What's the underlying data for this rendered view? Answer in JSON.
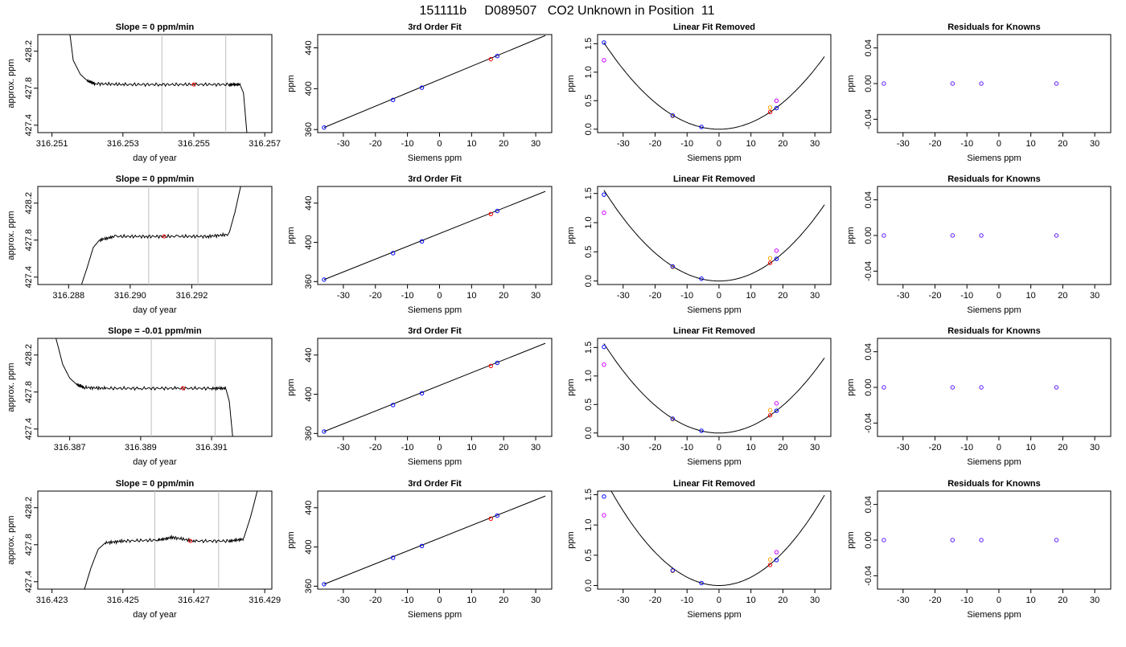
{
  "title": "151111b     D089507   CO2 Unknown in Position  11",
  "colors": {
    "known": "#0000ff",
    "unknown": "#ff0000",
    "magenta": "#cc00ff",
    "orange": "#ffa500",
    "line": "#000000",
    "vline": "#bebebe"
  },
  "chart_data": [
    {
      "type": "line",
      "row": 0,
      "col": 0,
      "title": "Slope =  0  ppm/min",
      "xlabel": "day of year",
      "ylabel": "approx. ppm",
      "xlim": [
        316.2506,
        316.2572
      ],
      "ylim": [
        427.32,
        428.38
      ],
      "xticks": [
        316.251,
        316.253,
        316.255,
        316.257
      ],
      "xtick_labels": [
        "316.251",
        "316.253",
        "316.255",
        "316.257"
      ],
      "yticks": [
        427.4,
        427.8,
        428.2
      ],
      "ytick_labels": [
        "427.4",
        "427.8",
        "428.2"
      ],
      "vlines": [
        316.2541,
        316.2559
      ],
      "x": [
        316.2515,
        316.2516,
        316.2518,
        316.252,
        316.2522,
        316.253,
        316.254,
        316.255,
        316.256,
        316.2563,
        316.2564,
        316.2565
      ],
      "y": [
        428.4,
        428.1,
        427.95,
        427.88,
        427.85,
        427.84,
        427.84,
        427.84,
        427.84,
        427.84,
        427.75,
        427.3
      ],
      "marker": {
        "x": 316.255,
        "y": 427.84
      }
    },
    {
      "type": "scatter",
      "row": 0,
      "col": 1,
      "title": "3rd Order Fit",
      "xlabel": "Siemens ppm",
      "ylabel": "ppm",
      "xlim": [
        -38,
        35
      ],
      "ylim": [
        357,
        453
      ],
      "xticks": [
        -30,
        -20,
        -10,
        0,
        10,
        20,
        30
      ],
      "xtick_labels": [
        "-30",
        "-20",
        "-10",
        "0",
        "10",
        "20",
        "30"
      ],
      "yticks": [
        360,
        400,
        440
      ],
      "ytick_labels": [
        "360",
        "400",
        "440"
      ],
      "line": {
        "x": [
          -36,
          33
        ],
        "y": [
          362,
          452
        ]
      },
      "knowns": {
        "x": [
          -36,
          -14.5,
          -5.5,
          18
        ],
        "y": [
          362,
          389,
          401,
          432
        ]
      },
      "unknowns": {
        "x": [
          16
        ],
        "y": [
          428.9
        ]
      }
    },
    {
      "type": "scatter",
      "row": 0,
      "col": 2,
      "title": "Linear Fit Removed",
      "xlabel": "Siemens ppm",
      "ylabel": "ppm",
      "xlim": [
        -38,
        35
      ],
      "ylim": [
        -0.06,
        1.66
      ],
      "xticks": [
        -30,
        -20,
        -10,
        0,
        10,
        20,
        30
      ],
      "xtick_labels": [
        "-30",
        "-20",
        "-10",
        "0",
        "10",
        "20",
        "30"
      ],
      "yticks": [
        0,
        0.5,
        1,
        1.5
      ],
      "ytick_labels": [
        "0.0",
        "0.5",
        "1.0",
        "1.5"
      ],
      "curve_coef": 0.00117,
      "knowns": {
        "x": [
          -36,
          -14.5,
          -5.5,
          18
        ],
        "y": [
          1.52,
          0.24,
          0.04,
          0.37
        ]
      },
      "magenta": {
        "x": [
          -36,
          18
        ],
        "y": [
          1.21,
          0.5
        ]
      },
      "orange": {
        "x": [
          -14.5,
          16
        ],
        "y": [
          0.23,
          0.38
        ]
      },
      "unknowns": {
        "x": [
          16
        ],
        "y": [
          0.3
        ]
      }
    },
    {
      "type": "scatter",
      "row": 0,
      "col": 3,
      "title": "Residuals for Knowns",
      "xlabel": "Siemens ppm",
      "ylabel": "ppm",
      "xlim": [
        -38,
        35
      ],
      "ylim": [
        -0.055,
        0.055
      ],
      "xticks": [
        -30,
        -20,
        -10,
        0,
        10,
        20,
        30
      ],
      "xtick_labels": [
        "-30",
        "-20",
        "-10",
        "0",
        "10",
        "20",
        "30"
      ],
      "yticks": [
        -0.04,
        0,
        0.04
      ],
      "ytick_labels": [
        "-0.04",
        "0.00",
        "0.04"
      ],
      "points": {
        "x": [
          -36,
          -14.5,
          -5.5,
          18
        ],
        "y": [
          0,
          0,
          0,
          0
        ]
      }
    },
    {
      "type": "line",
      "row": 1,
      "col": 0,
      "title": "Slope =  0  ppm/min",
      "xlabel": "day of year",
      "ylabel": "approx. ppm",
      "xlim": [
        316.287,
        316.2946
      ],
      "ylim": [
        427.32,
        428.38
      ],
      "xticks": [
        316.288,
        316.29,
        316.292
      ],
      "xtick_labels": [
        "316.288",
        "316.290",
        "316.292"
      ],
      "yticks": [
        427.4,
        427.8,
        428.2
      ],
      "ytick_labels": [
        "427.4",
        "427.8",
        "428.2"
      ],
      "vlines": [
        316.2906,
        316.2922
      ],
      "x": [
        316.2884,
        316.2886,
        316.2888,
        316.289,
        316.2895,
        316.2905,
        316.2915,
        316.2925,
        316.2932,
        316.2934,
        316.2936
      ],
      "y": [
        427.3,
        427.5,
        427.72,
        427.8,
        427.84,
        427.84,
        427.84,
        427.84,
        427.86,
        428.1,
        428.4
      ],
      "marker": {
        "x": 316.2911,
        "y": 427.84
      }
    },
    {
      "type": "scatter",
      "row": 1,
      "col": 1,
      "title": "3rd Order Fit",
      "xlabel": "Siemens ppm",
      "ylabel": "ppm",
      "xlim": [
        -38,
        35
      ],
      "ylim": [
        357,
        457
      ],
      "xticks": [
        -30,
        -20,
        -10,
        0,
        10,
        20,
        30
      ],
      "xtick_labels": [
        "-30",
        "-20",
        "-10",
        "0",
        "10",
        "20",
        "30"
      ],
      "yticks": [
        360,
        400,
        440
      ],
      "ytick_labels": [
        "360",
        "400",
        "440"
      ],
      "line": {
        "x": [
          -36,
          33
        ],
        "y": [
          362,
          452
        ]
      },
      "knowns": {
        "x": [
          -36,
          -14.5,
          -5.5,
          18
        ],
        "y": [
          362,
          389,
          401,
          432
        ]
      },
      "unknowns": {
        "x": [
          16
        ],
        "y": [
          428.9
        ]
      }
    },
    {
      "type": "scatter",
      "row": 1,
      "col": 2,
      "title": "Linear Fit Removed",
      "xlabel": "Siemens ppm",
      "ylabel": "ppm",
      "xlim": [
        -38,
        35
      ],
      "ylim": [
        -0.06,
        1.62
      ],
      "xticks": [
        -30,
        -20,
        -10,
        0,
        10,
        20,
        30
      ],
      "xtick_labels": [
        "-30",
        "-20",
        "-10",
        "0",
        "10",
        "20",
        "30"
      ],
      "yticks": [
        0,
        0.5,
        1,
        1.5
      ],
      "ytick_labels": [
        "0.0",
        "0.5",
        "1.0",
        "1.5"
      ],
      "curve_coef": 0.0012,
      "knowns": {
        "x": [
          -36,
          -14.5,
          -5.5,
          18
        ],
        "y": [
          1.48,
          0.25,
          0.04,
          0.38
        ]
      },
      "magenta": {
        "x": [
          -36,
          18
        ],
        "y": [
          1.17,
          0.52
        ]
      },
      "orange": {
        "x": [
          -14.5,
          16
        ],
        "y": [
          0.24,
          0.39
        ]
      },
      "unknowns": {
        "x": [
          16
        ],
        "y": [
          0.31
        ]
      }
    },
    {
      "type": "scatter",
      "row": 1,
      "col": 3,
      "title": "Residuals for Knowns",
      "xlabel": "Siemens ppm",
      "ylabel": "ppm",
      "xlim": [
        -38,
        35
      ],
      "ylim": [
        -0.055,
        0.055
      ],
      "xticks": [
        -30,
        -20,
        -10,
        0,
        10,
        20,
        30
      ],
      "xtick_labels": [
        "-30",
        "-20",
        "-10",
        "0",
        "10",
        "20",
        "30"
      ],
      "yticks": [
        -0.04,
        0,
        0.04
      ],
      "ytick_labels": [
        "-0.04",
        "0.00",
        "0.04"
      ],
      "points": {
        "x": [
          -36,
          -14.5,
          -5.5,
          18
        ],
        "y": [
          0,
          0,
          0,
          0
        ]
      }
    },
    {
      "type": "line",
      "row": 2,
      "col": 0,
      "title": "Slope =  -0.01  ppm/min",
      "xlabel": "day of year",
      "ylabel": "approx. ppm",
      "xlim": [
        316.3861,
        316.3927
      ],
      "ylim": [
        427.32,
        428.38
      ],
      "xticks": [
        316.387,
        316.389,
        316.391
      ],
      "xtick_labels": [
        "316.387",
        "316.389",
        "316.391"
      ],
      "yticks": [
        427.4,
        427.8,
        428.2
      ],
      "ytick_labels": [
        "427.4",
        "427.8",
        "428.2"
      ],
      "vlines": [
        316.3893,
        316.3911
      ],
      "x": [
        316.3866,
        316.3868,
        316.387,
        316.3872,
        316.3874,
        316.388,
        316.389,
        316.39,
        316.391,
        316.3914,
        316.3915,
        316.3916
      ],
      "y": [
        428.4,
        428.1,
        427.95,
        427.88,
        427.85,
        427.84,
        427.84,
        427.84,
        427.84,
        427.84,
        427.7,
        427.3
      ],
      "marker": {
        "x": 316.3902,
        "y": 427.84
      }
    },
    {
      "type": "scatter",
      "row": 2,
      "col": 1,
      "title": "3rd Order Fit",
      "xlabel": "Siemens ppm",
      "ylabel": "ppm",
      "xlim": [
        -38,
        35
      ],
      "ylim": [
        357,
        457
      ],
      "xticks": [
        -30,
        -20,
        -10,
        0,
        10,
        20,
        30
      ],
      "xtick_labels": [
        "-30",
        "-20",
        "-10",
        "0",
        "10",
        "20",
        "30"
      ],
      "yticks": [
        360,
        400,
        440
      ],
      "ytick_labels": [
        "360",
        "400",
        "440"
      ],
      "line": {
        "x": [
          -36,
          33
        ],
        "y": [
          362,
          452
        ]
      },
      "knowns": {
        "x": [
          -36,
          -14.5,
          -5.5,
          18
        ],
        "y": [
          362,
          389,
          401,
          432
        ]
      },
      "unknowns": {
        "x": [
          16
        ],
        "y": [
          428.9
        ]
      }
    },
    {
      "type": "scatter",
      "row": 2,
      "col": 2,
      "title": "Linear Fit Removed",
      "xlabel": "Siemens ppm",
      "ylabel": "ppm",
      "xlim": [
        -38,
        35
      ],
      "ylim": [
        -0.06,
        1.66
      ],
      "xticks": [
        -30,
        -20,
        -10,
        0,
        10,
        20,
        30
      ],
      "xtick_labels": [
        "-30",
        "-20",
        "-10",
        "0",
        "10",
        "20",
        "30"
      ],
      "yticks": [
        0,
        0.5,
        1,
        1.5
      ],
      "ytick_labels": [
        "0.0",
        "0.5",
        "1.0",
        "1.5"
      ],
      "curve_coef": 0.00121,
      "knowns": {
        "x": [
          -36,
          -14.5,
          -5.5,
          18
        ],
        "y": [
          1.51,
          0.25,
          0.04,
          0.39
        ]
      },
      "magenta": {
        "x": [
          -36,
          18
        ],
        "y": [
          1.2,
          0.52
        ]
      },
      "orange": {
        "x": [
          -14.5,
          16
        ],
        "y": [
          0.24,
          0.4
        ]
      },
      "unknowns": {
        "x": [
          16
        ],
        "y": [
          0.31
        ]
      }
    },
    {
      "type": "scatter",
      "row": 2,
      "col": 3,
      "title": "Residuals for Knowns",
      "xlabel": "Siemens ppm",
      "ylabel": "ppm",
      "xlim": [
        -38,
        35
      ],
      "ylim": [
        -0.055,
        0.055
      ],
      "xticks": [
        -30,
        -20,
        -10,
        0,
        10,
        20,
        30
      ],
      "xtick_labels": [
        "-30",
        "-20",
        "-10",
        "0",
        "10",
        "20",
        "30"
      ],
      "yticks": [
        -0.04,
        0,
        0.04
      ],
      "ytick_labels": [
        "-0.04",
        "0.00",
        "0.04"
      ],
      "points": {
        "x": [
          -36,
          -14.5,
          -5.5,
          18
        ],
        "y": [
          0,
          0,
          0,
          0
        ]
      }
    },
    {
      "type": "line",
      "row": 3,
      "col": 0,
      "title": "Slope =  0  ppm/min",
      "xlabel": "day of year",
      "ylabel": "approx. ppm",
      "xlim": [
        316.4226,
        316.4292
      ],
      "ylim": [
        427.32,
        428.38
      ],
      "xticks": [
        316.423,
        316.425,
        316.427,
        316.429
      ],
      "xtick_labels": [
        "316.423",
        "316.425",
        "316.427",
        "316.429"
      ],
      "yticks": [
        427.4,
        427.8,
        428.2
      ],
      "ytick_labels": [
        "427.4",
        "427.8",
        "428.2"
      ],
      "vlines": [
        316.4259,
        316.4277
      ],
      "x": [
        316.4239,
        316.4241,
        316.4243,
        316.4245,
        316.425,
        316.426,
        316.4264,
        316.427,
        316.428,
        316.4284,
        316.4286,
        316.4288
      ],
      "y": [
        427.3,
        427.55,
        427.75,
        427.82,
        427.84,
        427.85,
        427.88,
        427.84,
        427.84,
        427.86,
        428.1,
        428.4
      ],
      "marker": {
        "x": 316.4269,
        "y": 427.84
      }
    },
    {
      "type": "scatter",
      "row": 3,
      "col": 1,
      "title": "3rd Order Fit",
      "xlabel": "Siemens ppm",
      "ylabel": "ppm",
      "xlim": [
        -38,
        35
      ],
      "ylim": [
        357,
        457
      ],
      "xticks": [
        -30,
        -20,
        -10,
        0,
        10,
        20,
        30
      ],
      "xtick_labels": [
        "-30",
        "-20",
        "-10",
        "0",
        "10",
        "20",
        "30"
      ],
      "yticks": [
        360,
        400,
        440
      ],
      "ytick_labels": [
        "360",
        "400",
        "440"
      ],
      "line": {
        "x": [
          -36,
          33
        ],
        "y": [
          362,
          452
        ]
      },
      "knowns": {
        "x": [
          -36,
          -14.5,
          -5.5,
          18
        ],
        "y": [
          362,
          389,
          401,
          432
        ]
      },
      "unknowns": {
        "x": [
          16
        ],
        "y": [
          428.9
        ]
      }
    },
    {
      "type": "scatter",
      "row": 3,
      "col": 2,
      "title": "Linear Fit Removed",
      "xlabel": "Siemens ppm",
      "ylabel": "ppm",
      "xlim": [
        -38,
        35
      ],
      "ylim": [
        -0.06,
        1.56
      ],
      "xticks": [
        -30,
        -20,
        -10,
        0,
        10,
        20,
        30
      ],
      "xtick_labels": [
        "-30",
        "-20",
        "-10",
        "0",
        "10",
        "20",
        "30"
      ],
      "yticks": [
        0,
        0.5,
        1,
        1.5
      ],
      "ytick_labels": [
        "0.0",
        "0.5",
        "1.0",
        "1.5"
      ],
      "curve_coef": 0.00137,
      "knowns": {
        "x": [
          -36,
          -14.5,
          -5.5,
          18
        ],
        "y": [
          1.47,
          0.25,
          0.04,
          0.42
        ]
      },
      "magenta": {
        "x": [
          -36,
          18
        ],
        "y": [
          1.16,
          0.55
        ]
      },
      "orange": {
        "x": [
          -14.5,
          16
        ],
        "y": [
          0.24,
          0.43
        ]
      },
      "unknowns": {
        "x": [
          16
        ],
        "y": [
          0.34
        ]
      }
    },
    {
      "type": "scatter",
      "row": 3,
      "col": 3,
      "title": "Residuals for Knowns",
      "xlabel": "Siemens ppm",
      "ylabel": "ppm",
      "xlim": [
        -38,
        35
      ],
      "ylim": [
        -0.055,
        0.055
      ],
      "xticks": [
        -30,
        -20,
        -10,
        0,
        10,
        20,
        30
      ],
      "xtick_labels": [
        "-30",
        "-20",
        "-10",
        "0",
        "10",
        "20",
        "30"
      ],
      "yticks": [
        -0.04,
        0,
        0.04
      ],
      "ytick_labels": [
        "-0.04",
        "0.00",
        "0.04"
      ],
      "points": {
        "x": [
          -36,
          -14.5,
          -5.5,
          18
        ],
        "y": [
          0,
          0,
          0,
          0
        ]
      }
    }
  ]
}
